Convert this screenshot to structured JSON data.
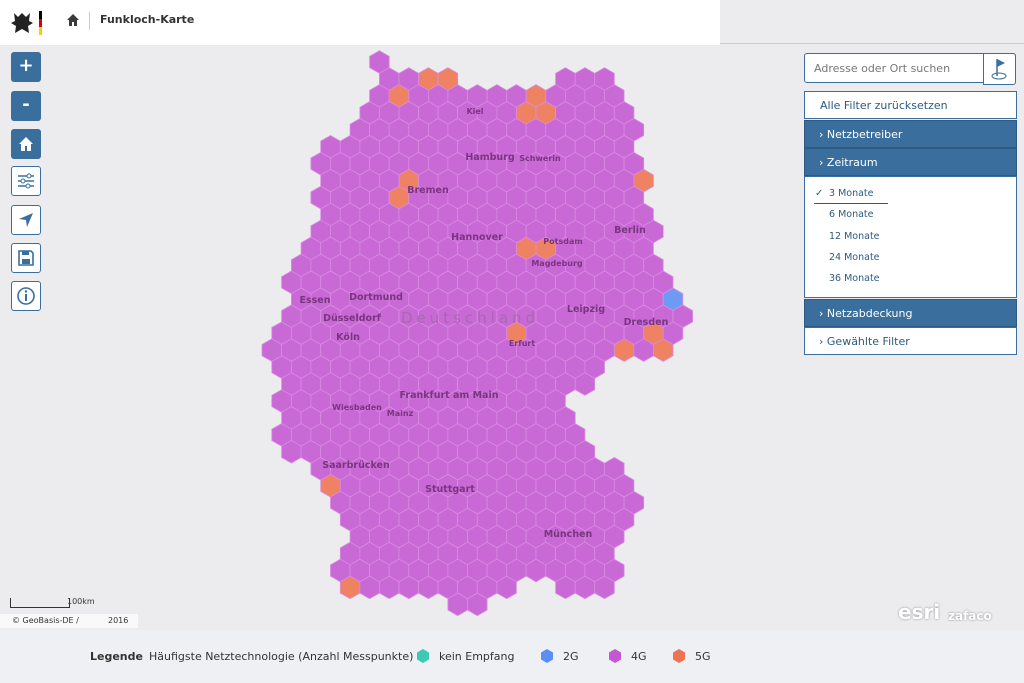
{
  "header": {
    "title": "Funkloch-Karte"
  },
  "toolbar": {
    "zoom_in": "+",
    "zoom_out": "-"
  },
  "search": {
    "placeholder": "Adresse oder Ort suchen"
  },
  "filters": {
    "reset": "Alle Filter zurücksetzen",
    "sections": [
      "Netzbetreiber",
      "Zeitraum",
      "Netzabdeckung",
      "Gewählte Filter"
    ],
    "periods": [
      "3 Monate",
      "6 Monate",
      "12 Monate",
      "24 Monate",
      "36 Monate"
    ]
  },
  "map": {
    "labels": [
      "Kiel",
      "Hamburg",
      "Schwerin",
      "Bremen",
      "Hannover",
      "Berlin",
      "Potsdam",
      "Magdeburg",
      "Essen",
      "Dortmund",
      "Düsseldorf",
      "Köln",
      "Deutschland",
      "Leipzig",
      "Dresden",
      "Erfurt",
      "Frankfurt am Main",
      "Wiesbaden",
      "Mainz",
      "Saarbrücken",
      "Stuttgart",
      "München"
    ],
    "scale": "100km",
    "attribution": "© GeoBasis-DE /",
    "year": "2016",
    "logos": [
      "esri",
      "zafaco"
    ]
  },
  "legend": {
    "title": "Legende",
    "subtitle": "Häufigste Netztechnologie (Anzahl Messpunkte)",
    "items": [
      {
        "label": "kein Empfang",
        "color": "#3ec9b5"
      },
      {
        "label": "2G",
        "color": "#5b8ff5"
      },
      {
        "label": "4G",
        "color": "#c457d3"
      },
      {
        "label": "5G",
        "color": "#ef7350"
      }
    ]
  }
}
